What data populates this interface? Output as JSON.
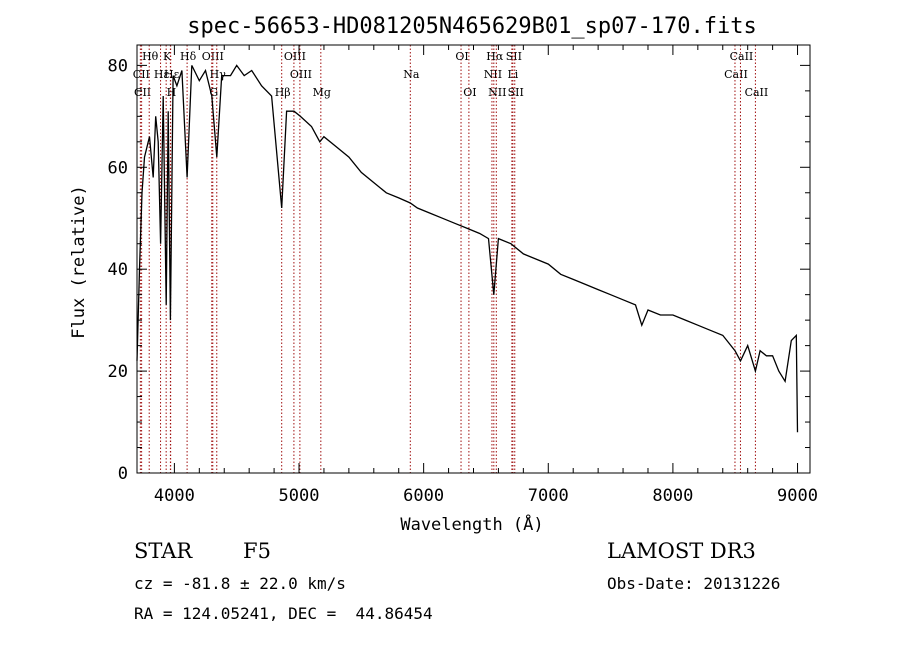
{
  "chart_data": {
    "type": "line",
    "title": "spec-56653-HD081205N465629B01_sp07-170.fits",
    "xlabel": "Wavelength (Å)",
    "ylabel": "Flux (relative)",
    "xlim": [
      3700,
      9100
    ],
    "ylim": [
      0,
      84
    ],
    "xticks": [
      4000,
      5000,
      6000,
      7000,
      8000,
      9000
    ],
    "yticks": [
      0,
      20,
      40,
      60,
      80
    ],
    "series": [
      {
        "name": "flux",
        "x": [
          3700,
          3720,
          3740,
          3760,
          3800,
          3830,
          3850,
          3870,
          3889,
          3910,
          3934,
          3950,
          3968,
          3990,
          4020,
          4060,
          4102,
          4140,
          4200,
          4250,
          4300,
          4340,
          4380,
          4450,
          4500,
          4560,
          4620,
          4700,
          4780,
          4861,
          4900,
          4960,
          5010,
          5100,
          5167,
          5200,
          5300,
          5400,
          5500,
          5600,
          5700,
          5800,
          5893,
          5950,
          6050,
          6150,
          6250,
          6350,
          6450,
          6520,
          6563,
          6600,
          6700,
          6800,
          6900,
          7000,
          7100,
          7200,
          7300,
          7400,
          7500,
          7600,
          7700,
          7750,
          7800,
          7900,
          8000,
          8100,
          8200,
          8300,
          8400,
          8498,
          8542,
          8600,
          8662,
          8700,
          8750,
          8800,
          8850,
          8900,
          8950,
          8990,
          9000
        ],
        "y": [
          22,
          40,
          55,
          62,
          66,
          58,
          70,
          65,
          45,
          74,
          33,
          71,
          30,
          78,
          76,
          79,
          58,
          80,
          77,
          79,
          74,
          62,
          78,
          78,
          80,
          78,
          79,
          76,
          74,
          52,
          71,
          71,
          70,
          68,
          65,
          66,
          64,
          62,
          59,
          57,
          55,
          54,
          53,
          52,
          51,
          50,
          49,
          48,
          47,
          46,
          35,
          46,
          45,
          43,
          42,
          41,
          39,
          38,
          37,
          36,
          35,
          34,
          33,
          29,
          32,
          31,
          31,
          30,
          29,
          28,
          27,
          24,
          22,
          25,
          20,
          24,
          23,
          23,
          20,
          18,
          26,
          27,
          8
        ]
      }
    ],
    "lines": [
      {
        "label": "CII",
        "x": 3727,
        "row": 1
      },
      {
        "label": "CII",
        "x": 3737,
        "row": 2
      },
      {
        "label": "Hθ",
        "x": 3798,
        "row": 0
      },
      {
        "label": "Hε",
        "x": 3889,
        "row": 1
      },
      {
        "label": "K",
        "x": 3934,
        "row": 0
      },
      {
        "label": "H",
        "x": 3968,
        "row": 2
      },
      {
        "label": "Hε",
        "x": 3970,
        "row": 1
      },
      {
        "label": "Hδ",
        "x": 4102,
        "row": 0
      },
      {
        "label": "OIII",
        "x": 4300,
        "row": 0
      },
      {
        "label": "Hγ",
        "x": 4340,
        "row": 1
      },
      {
        "label": "G",
        "x": 4308,
        "row": 2
      },
      {
        "label": "Hβ",
        "x": 4861,
        "row": 2
      },
      {
        "label": "OIII",
        "x": 4959,
        "row": 0
      },
      {
        "label": "OIII",
        "x": 5007,
        "row": 1
      },
      {
        "label": "Mg",
        "x": 5175,
        "row": 2
      },
      {
        "label": "Na",
        "x": 5893,
        "row": 1
      },
      {
        "label": "OI",
        "x": 6300,
        "row": 0
      },
      {
        "label": "OI",
        "x": 6363,
        "row": 2
      },
      {
        "label": "NII",
        "x": 6548,
        "row": 1
      },
      {
        "label": "Hα",
        "x": 6563,
        "row": 0
      },
      {
        "label": "NII",
        "x": 6583,
        "row": 2
      },
      {
        "label": "Li",
        "x": 6708,
        "row": 1
      },
      {
        "label": "SII",
        "x": 6716,
        "row": 0
      },
      {
        "label": "SII",
        "x": 6731,
        "row": 2
      },
      {
        "label": "CaII",
        "x": 8498,
        "row": 1
      },
      {
        "label": "CaII",
        "x": 8542,
        "row": 0
      },
      {
        "label": "CaII",
        "x": 8662,
        "row": 2
      }
    ]
  },
  "info": {
    "class": "STAR",
    "subclass": "F5",
    "survey": "LAMOST DR3",
    "cz": "cz = -81.8 ± 22.0 km/s",
    "obs_date": "Obs-Date: 20131226",
    "radec": "RA = 124.05241, DEC =  44.86454"
  },
  "colors": {
    "line_marker": "#a01010",
    "spectrum": "#000000",
    "axis": "#000000"
  }
}
